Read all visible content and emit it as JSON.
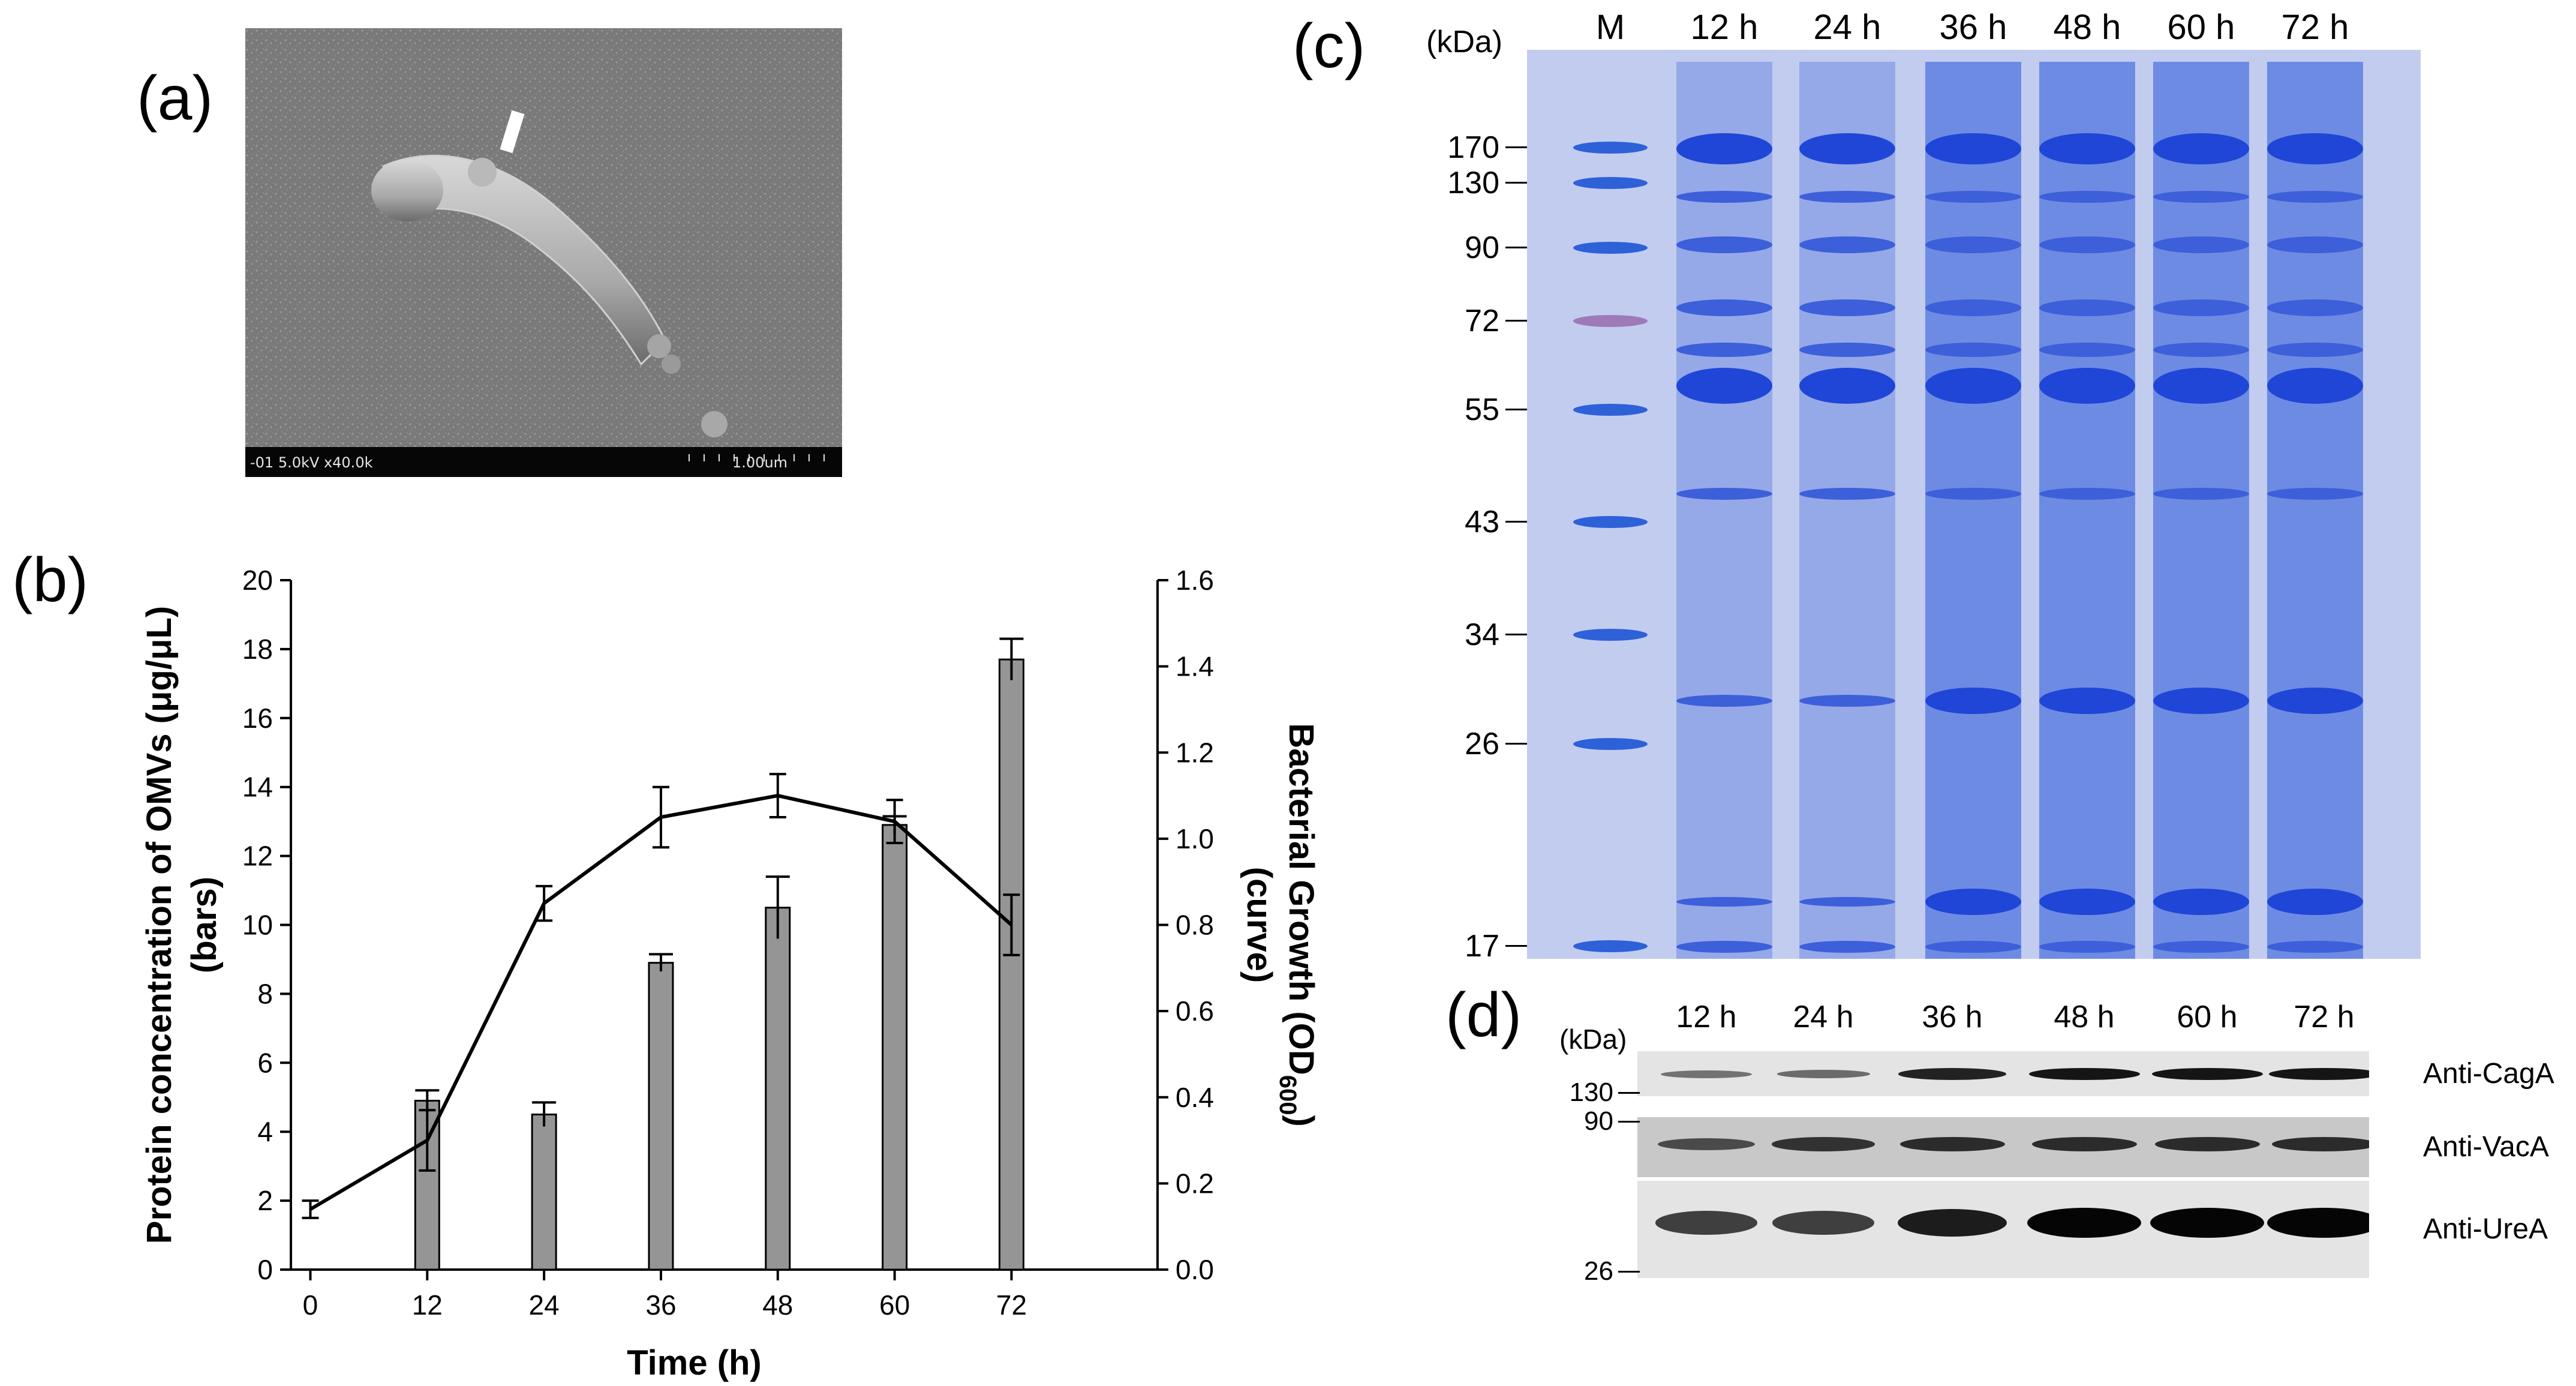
{
  "panels": {
    "a": "(a)",
    "b": "(b)",
    "c": "(c)",
    "d": "(d)"
  },
  "sem": {
    "info_left": "-01 5.0kV x40.0k",
    "scale_label": "1.00um"
  },
  "chart_data": {
    "type": "bar",
    "xlabel": "Time (h)",
    "ylabel": "Protein concentration of OMVs (μg/μL) (bars)",
    "y2label": "Bacterial Growth (OD600) (curve)",
    "x_ticks": [
      "0",
      "12",
      "24",
      "36",
      "48",
      "60",
      "72"
    ],
    "y_ticks": [
      "0",
      "2",
      "4",
      "6",
      "8",
      "10",
      "12",
      "14",
      "16",
      "18",
      "20"
    ],
    "y2_ticks": [
      "0.0",
      "0.2",
      "0.4",
      "0.6",
      "0.8",
      "1.0",
      "1.2",
      "1.4",
      "1.6"
    ],
    "ylim": [
      0,
      20
    ],
    "y2lim": [
      0,
      1.6
    ],
    "bars": {
      "x": [
        12,
        24,
        36,
        48,
        60,
        72
      ],
      "values": [
        4.9,
        4.5,
        8.9,
        10.5,
        12.9,
        17.7
      ],
      "errors": [
        0.3,
        0.35,
        0.25,
        0.9,
        0.25,
        0.6
      ],
      "color": "#959595"
    },
    "curve": {
      "x": [
        0,
        12,
        24,
        36,
        48,
        60,
        72
      ],
      "values": [
        0.14,
        0.3,
        0.85,
        1.05,
        1.1,
        1.04,
        0.8
      ],
      "errors": [
        0.02,
        0.07,
        0.04,
        0.07,
        0.05,
        0.05,
        0.07
      ],
      "color": "#000000"
    }
  },
  "gel": {
    "unit": "(kDa)",
    "lanes": [
      "M",
      "12 h",
      "24 h",
      "36 h",
      "48 h",
      "60 h",
      "72 h"
    ],
    "markers": [
      "170",
      "130",
      "90",
      "72",
      "55",
      "43",
      "34",
      "26",
      "17"
    ]
  },
  "western": {
    "unit": "(kDa)",
    "lanes": [
      "12 h",
      "24 h",
      "36 h",
      "48 h",
      "60 h",
      "72 h"
    ],
    "markers": [
      "130",
      "90",
      "26"
    ],
    "antibodies": [
      "Anti-CagA",
      "Anti-VacA",
      "Anti-UreA"
    ],
    "intensity": {
      "Anti-CagA": [
        0.25,
        0.3,
        0.8,
        0.9,
        0.9,
        0.9
      ],
      "Anti-VacA": [
        0.45,
        0.65,
        0.7,
        0.7,
        0.7,
        0.7
      ],
      "Anti-UreA": [
        0.6,
        0.6,
        0.85,
        1.0,
        1.0,
        1.0
      ]
    }
  }
}
